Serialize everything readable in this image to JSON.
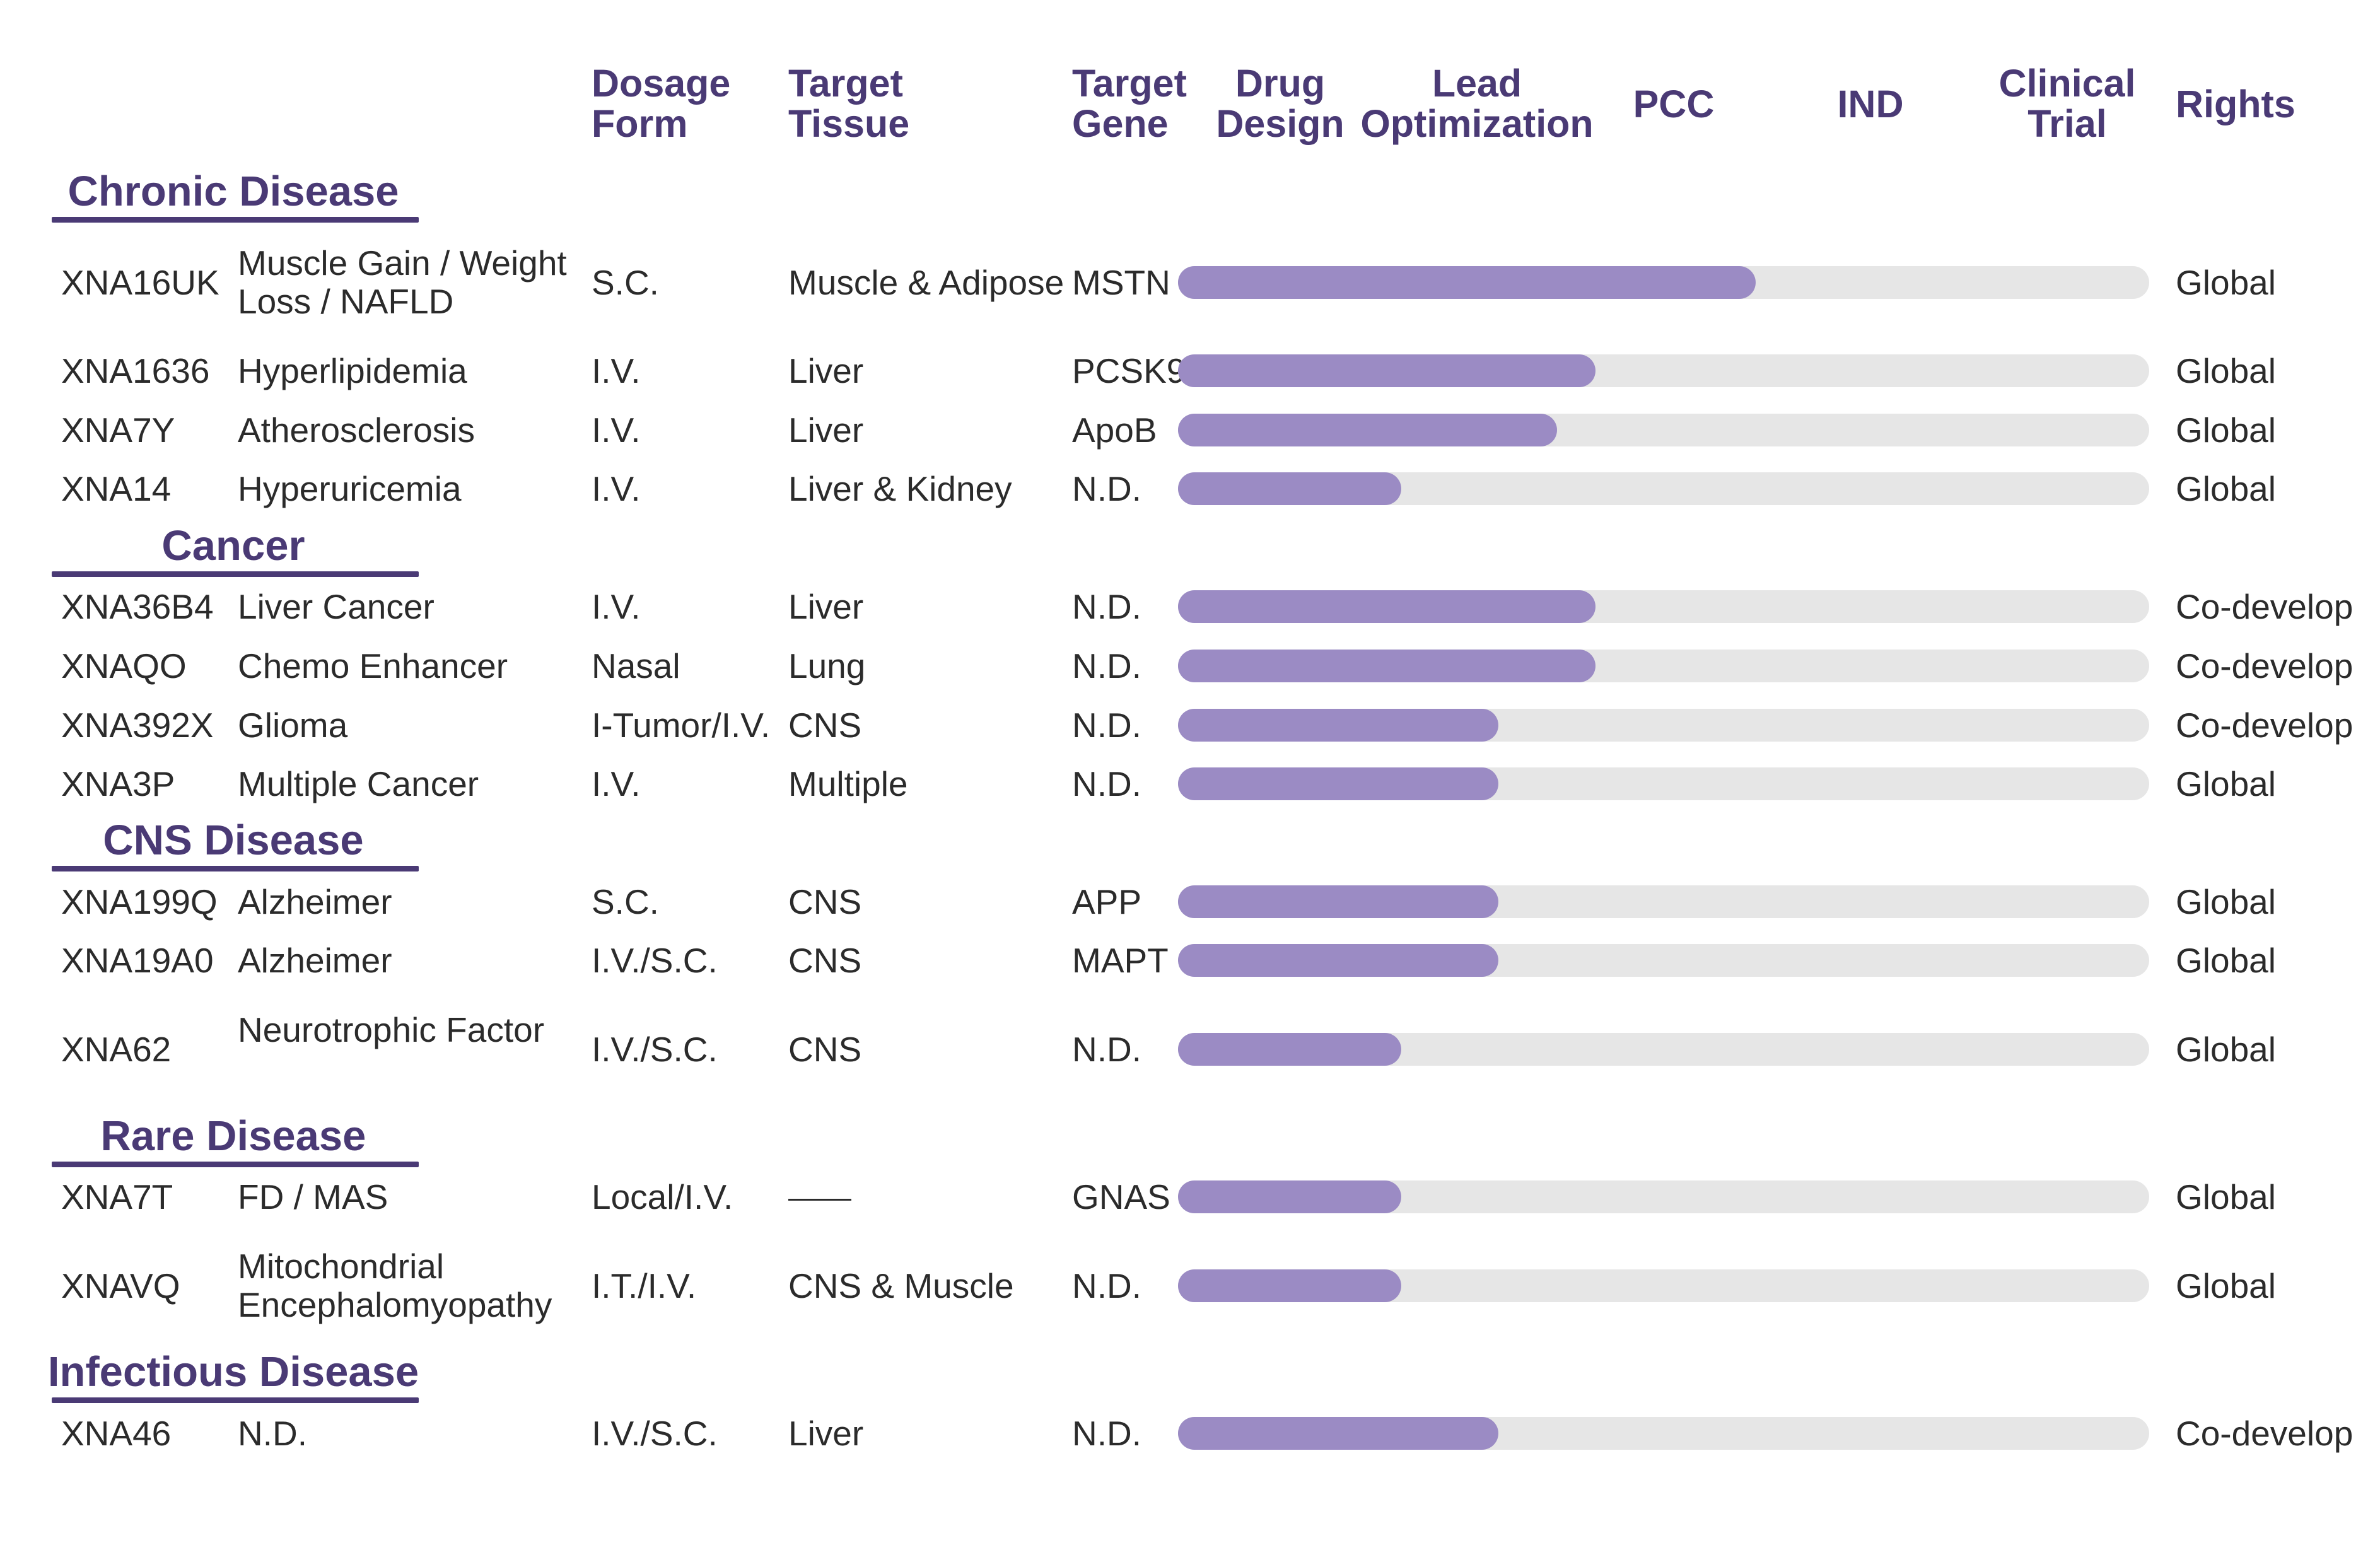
{
  "columns": {
    "dosage_form": "Dosage Form",
    "target_tissue": "Target Tissue",
    "target_gene": "Target Gene",
    "stages": [
      "Drug Design",
      "Lead Optimization",
      "PCC",
      "IND",
      "Clinical Trial"
    ],
    "rights": "Rights"
  },
  "categories": [
    {
      "name": "Chronic Disease",
      "programs": [
        {
          "code": "XNA16UK",
          "indication": "Muscle Gain / Weight Loss / NAFLD",
          "dosage": "S.C.",
          "tissue": "Muscle & Adipose",
          "gene": "MSTN",
          "progress": 0.595,
          "rights": "Global"
        },
        {
          "code": "XNA1636",
          "indication": "Hyperlipidemia",
          "dosage": "I.V.",
          "tissue": "Liver",
          "gene": "PCSK9",
          "progress": 0.43,
          "rights": "Global"
        },
        {
          "code": "XNA7Y",
          "indication": "Atherosclerosis",
          "dosage": "I.V.",
          "tissue": "Liver",
          "gene": "ApoB",
          "progress": 0.39,
          "rights": "Global"
        },
        {
          "code": "XNA14",
          "indication": "Hyperuricemia",
          "dosage": "I.V.",
          "tissue": "Liver & Kidney",
          "gene": "N.D.",
          "progress": 0.23,
          "rights": "Global"
        }
      ]
    },
    {
      "name": "Cancer",
      "programs": [
        {
          "code": "XNA36B4",
          "indication": "Liver Cancer",
          "dosage": "I.V.",
          "tissue": "Liver",
          "gene": "N.D.",
          "progress": 0.43,
          "rights": "Co-develop"
        },
        {
          "code": "XNAQO",
          "indication": "Chemo Enhancer",
          "dosage": "Nasal",
          "tissue": "Lung",
          "gene": "N.D.",
          "progress": 0.43,
          "rights": "Co-develop"
        },
        {
          "code": "XNA392X",
          "indication": "Glioma",
          "dosage": "I-Tumor/I.V.",
          "tissue": "CNS",
          "gene": "N.D.",
          "progress": 0.33,
          "rights": "Co-develop"
        },
        {
          "code": "XNA3P",
          "indication": "Multiple Cancer",
          "dosage": "I.V.",
          "tissue": "Multiple",
          "gene": "N.D.",
          "progress": 0.33,
          "rights": "Global"
        }
      ]
    },
    {
      "name": "CNS Disease",
      "programs": [
        {
          "code": "XNA199Q",
          "indication": "Alzheimer",
          "dosage": "S.C.",
          "tissue": "CNS",
          "gene": "APP",
          "progress": 0.33,
          "rights": "Global"
        },
        {
          "code": "XNA19A0",
          "indication": "Alzheimer",
          "dosage": "I.V./S.C.",
          "tissue": "CNS",
          "gene": "MAPT",
          "progress": 0.33,
          "rights": "Global"
        },
        {
          "code": "XNA62",
          "indication": "Neurotrophic Factor",
          "dosage": "I.V./S.C.",
          "tissue": "CNS",
          "gene": "N.D.",
          "progress": 0.23,
          "rights": "Global"
        }
      ]
    },
    {
      "name": "Rare Disease",
      "programs": [
        {
          "code": "XNA7T",
          "indication": "FD / MAS",
          "dosage": "Local/I.V.",
          "tissue": "",
          "gene": "GNAS",
          "progress": 0.23,
          "rights": "Global"
        },
        {
          "code": "XNAVQ",
          "indication": "Mitochondrial Encephalomyopathy",
          "dosage": "I.T./I.V.",
          "tissue": "CNS & Muscle",
          "gene": "N.D.",
          "progress": 0.23,
          "rights": "Global"
        }
      ]
    },
    {
      "name": "Infectious Disease",
      "programs": [
        {
          "code": "XNA46",
          "indication": "N.D.",
          "dosage": "I.V./S.C.",
          "tissue": "Liver",
          "gene": "N.D.",
          "progress": 0.33,
          "rights": "Co-develop"
        }
      ]
    }
  ]
}
